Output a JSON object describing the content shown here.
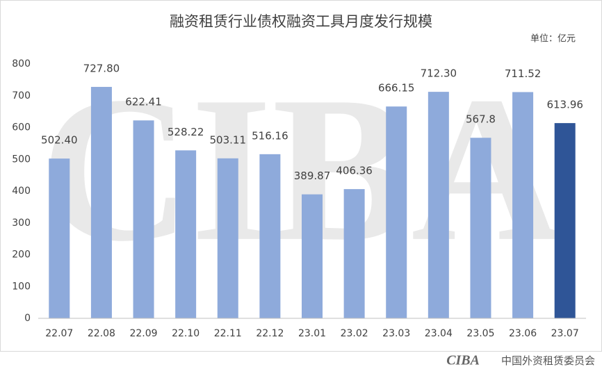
{
  "chart_data": {
    "type": "bar",
    "title": "融资租赁行业债权融资工具月度发行规模",
    "unit": "单位：亿元",
    "watermark": "CIBA",
    "footer_logo": "CIBA",
    "footer": "中国外资租赁委员会",
    "categories": [
      "22.07",
      "22.08",
      "22.09",
      "22.10",
      "22.11",
      "22.12",
      "23.01",
      "23.02",
      "23.03",
      "23.04",
      "23.05",
      "23.06",
      "23.07"
    ],
    "values": [
      502.4,
      727.8,
      622.41,
      528.22,
      503.11,
      516.16,
      389.87,
      406.36,
      666.15,
      712.3,
      567.8,
      711.52,
      613.96
    ],
    "value_labels": [
      "502.40",
      "727.80",
      "622.41",
      "528.22",
      "503.11",
      "516.16",
      "389.87",
      "406.36",
      "666.15",
      "712.30",
      "567.8",
      "711.52",
      "613.96"
    ],
    "colors": [
      "#8eaadb",
      "#8eaadb",
      "#8eaadb",
      "#8eaadb",
      "#8eaadb",
      "#8eaadb",
      "#8eaadb",
      "#8eaadb",
      "#8eaadb",
      "#8eaadb",
      "#8eaadb",
      "#8eaadb",
      "#2f5597"
    ],
    "ylim": [
      0,
      800
    ],
    "yticks": [
      0,
      100,
      200,
      300,
      400,
      500,
      600,
      700,
      800
    ],
    "grid": false
  }
}
